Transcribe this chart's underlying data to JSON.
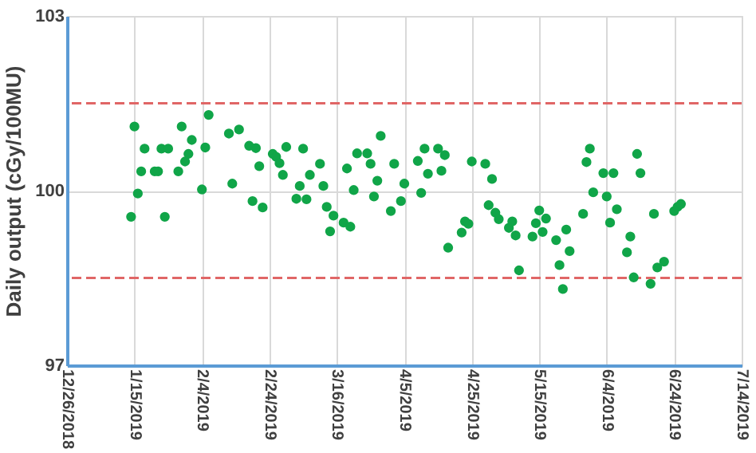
{
  "chart_data": {
    "type": "scatter",
    "ylabel": "Daily output (cGy/100MU)",
    "x": [
      "2019-01-14",
      "2019-01-15",
      "2019-01-16",
      "2019-01-17",
      "2019-01-18",
      "2019-01-21",
      "2019-01-22",
      "2019-01-23",
      "2019-01-24",
      "2019-01-25",
      "2019-01-28",
      "2019-01-29",
      "2019-01-30",
      "2019-01-31",
      "2019-02-01",
      "2019-02-04",
      "2019-02-05",
      "2019-02-06",
      "2019-02-12",
      "2019-02-13",
      "2019-02-15",
      "2019-02-18",
      "2019-02-19",
      "2019-02-20",
      "2019-02-21",
      "2019-02-22",
      "2019-02-25",
      "2019-02-26",
      "2019-02-27",
      "2019-02-28",
      "2019-03-01",
      "2019-03-04",
      "2019-03-05",
      "2019-03-06",
      "2019-03-07",
      "2019-03-08",
      "2019-03-11",
      "2019-03-12",
      "2019-03-13",
      "2019-03-14",
      "2019-03-15",
      "2019-03-18",
      "2019-03-19",
      "2019-03-20",
      "2019-03-21",
      "2019-03-22",
      "2019-03-25",
      "2019-03-26",
      "2019-03-27",
      "2019-03-28",
      "2019-03-29",
      "2019-04-01",
      "2019-04-02",
      "2019-04-04",
      "2019-04-05",
      "2019-04-09",
      "2019-04-10",
      "2019-04-11",
      "2019-04-12",
      "2019-04-15",
      "2019-04-16",
      "2019-04-17",
      "2019-04-18",
      "2019-04-22",
      "2019-04-23",
      "2019-04-24",
      "2019-04-25",
      "2019-04-29",
      "2019-04-30",
      "2019-05-01",
      "2019-05-02",
      "2019-05-03",
      "2019-05-06",
      "2019-05-07",
      "2019-05-08",
      "2019-05-09",
      "2019-05-13",
      "2019-05-14",
      "2019-05-15",
      "2019-05-16",
      "2019-05-17",
      "2019-05-20",
      "2019-05-21",
      "2019-05-22",
      "2019-05-23",
      "2019-05-24",
      "2019-05-28",
      "2019-05-29",
      "2019-05-30",
      "2019-05-31",
      "2019-06-03",
      "2019-06-04",
      "2019-06-05",
      "2019-06-06",
      "2019-06-07",
      "2019-06-10",
      "2019-06-11",
      "2019-06-12",
      "2019-06-13",
      "2019-06-14",
      "2019-06-17",
      "2019-06-18",
      "2019-06-19",
      "2019-06-21",
      "2019-06-24",
      "2019-06-25",
      "2019-06-26"
    ],
    "series": [
      {
        "color": "#10a548",
        "values": [
          99.55,
          101.1,
          99.95,
          100.33,
          100.72,
          100.33,
          100.33,
          100.72,
          99.55,
          100.72,
          100.33,
          101.1,
          100.5,
          100.63,
          100.87,
          100.02,
          100.74,
          101.3,
          100.98,
          100.12,
          101.05,
          100.77,
          99.82,
          100.73,
          100.42,
          99.71,
          100.63,
          100.58,
          100.47,
          100.27,
          100.75,
          99.86,
          100.08,
          100.72,
          99.85,
          100.27,
          100.46,
          100.08,
          99.72,
          99.3,
          99.57,
          99.45,
          100.38,
          99.38,
          100.01,
          100.64,
          100.64,
          100.46,
          99.9,
          100.17,
          100.94,
          99.65,
          100.46,
          99.82,
          100.12,
          100.51,
          99.96,
          100.72,
          100.29,
          100.72,
          100.34,
          100.61,
          99.02,
          99.28,
          99.47,
          99.43,
          100.5,
          100.46,
          99.75,
          100.2,
          99.62,
          99.51,
          99.36,
          99.47,
          99.23,
          98.63,
          99.21,
          99.44,
          99.66,
          99.29,
          99.52,
          99.15,
          98.72,
          98.31,
          99.33,
          98.96,
          99.6,
          100.49,
          100.72,
          99.97,
          100.3,
          99.9,
          99.45,
          100.3,
          99.68,
          98.94,
          99.21,
          98.51,
          100.63,
          100.3,
          98.4,
          99.6,
          98.68,
          98.78,
          99.65,
          99.72,
          99.77
        ]
      }
    ],
    "xlim": [
      "2018-12-26",
      "2019-07-14"
    ],
    "xticks": [
      {
        "value": "2018-12-26",
        "label": "12/26/2018"
      },
      {
        "value": "2019-01-15",
        "label": "1/15/2019"
      },
      {
        "value": "2019-02-04",
        "label": "2/4/2019"
      },
      {
        "value": "2019-02-24",
        "label": "2/24/2019"
      },
      {
        "value": "2019-03-16",
        "label": "3/16/2019"
      },
      {
        "value": "2019-04-05",
        "label": "4/5/2019"
      },
      {
        "value": "2019-04-25",
        "label": "4/25/2019"
      },
      {
        "value": "2019-05-15",
        "label": "5/15/2019"
      },
      {
        "value": "2019-06-04",
        "label": "6/4/2019"
      },
      {
        "value": "2019-06-24",
        "label": "6/24/2019"
      },
      {
        "value": "2019-07-14",
        "label": "7/14/2019"
      }
    ],
    "ylim": [
      97,
      103
    ],
    "yticks": [
      97,
      100,
      103
    ],
    "ref_lines": [
      {
        "axis": "y",
        "value": 101.5,
        "color": "#e06666",
        "line_style": "dashed"
      },
      {
        "axis": "y",
        "value": 98.5,
        "color": "#e06666",
        "line_style": "dashed"
      }
    ],
    "grid": true,
    "marker": "circle"
  }
}
